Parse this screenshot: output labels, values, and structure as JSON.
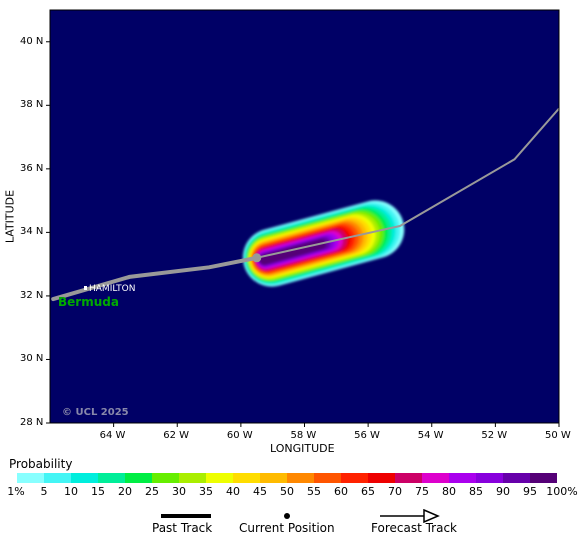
{
  "map": {
    "latitude_label": "LATITUDE",
    "longitude_label": "LONGITUDE",
    "lat_ticks": [
      "40 N",
      "38 N",
      "36 N",
      "34 N",
      "32 N",
      "30 N",
      "28 N"
    ],
    "lon_ticks": [
      "64 W",
      "62 W",
      "60 W",
      "58 W",
      "56 W",
      "54 W",
      "52 W",
      "50 W"
    ],
    "place_city": "HAMILTON",
    "place_island": "Bermuda",
    "copyright": "© UCL 2025",
    "ocean_color": "#000066",
    "land_color": "#00aa00",
    "track_color": "#999999"
  },
  "track": {
    "past": [
      [
        -65.9,
        31.9
      ],
      [
        -63.5,
        32.6
      ],
      [
        -61.0,
        32.9
      ],
      [
        -59.5,
        33.2
      ]
    ],
    "current": [
      -59.5,
      33.2
    ],
    "forecast": [
      [
        -59.5,
        33.2
      ],
      [
        -55.0,
        34.2
      ],
      [
        -51.4,
        36.3
      ],
      [
        -50.0,
        37.9
      ]
    ]
  },
  "probability": {
    "title": "Probability",
    "labels": [
      "1%",
      "5",
      "10",
      "15",
      "20",
      "25",
      "30",
      "35",
      "40",
      "45",
      "50",
      "55",
      "60",
      "65",
      "70",
      "75",
      "80",
      "85",
      "90",
      "95",
      "100%"
    ],
    "colors": [
      "#88ffff",
      "#44f5f5",
      "#00eedd",
      "#00ee99",
      "#00ee44",
      "#66ee00",
      "#aaee00",
      "#eeff00",
      "#ffdd00",
      "#ffbb00",
      "#ff8800",
      "#ff5500",
      "#ff2200",
      "#ee0000",
      "#cc0066",
      "#dd00cc",
      "#aa00ee",
      "#8800dd",
      "#6600aa",
      "#550077"
    ]
  },
  "legend": {
    "past_track": "Past Track",
    "current_position": "Current Position",
    "forecast_track": "Forecast Track"
  }
}
